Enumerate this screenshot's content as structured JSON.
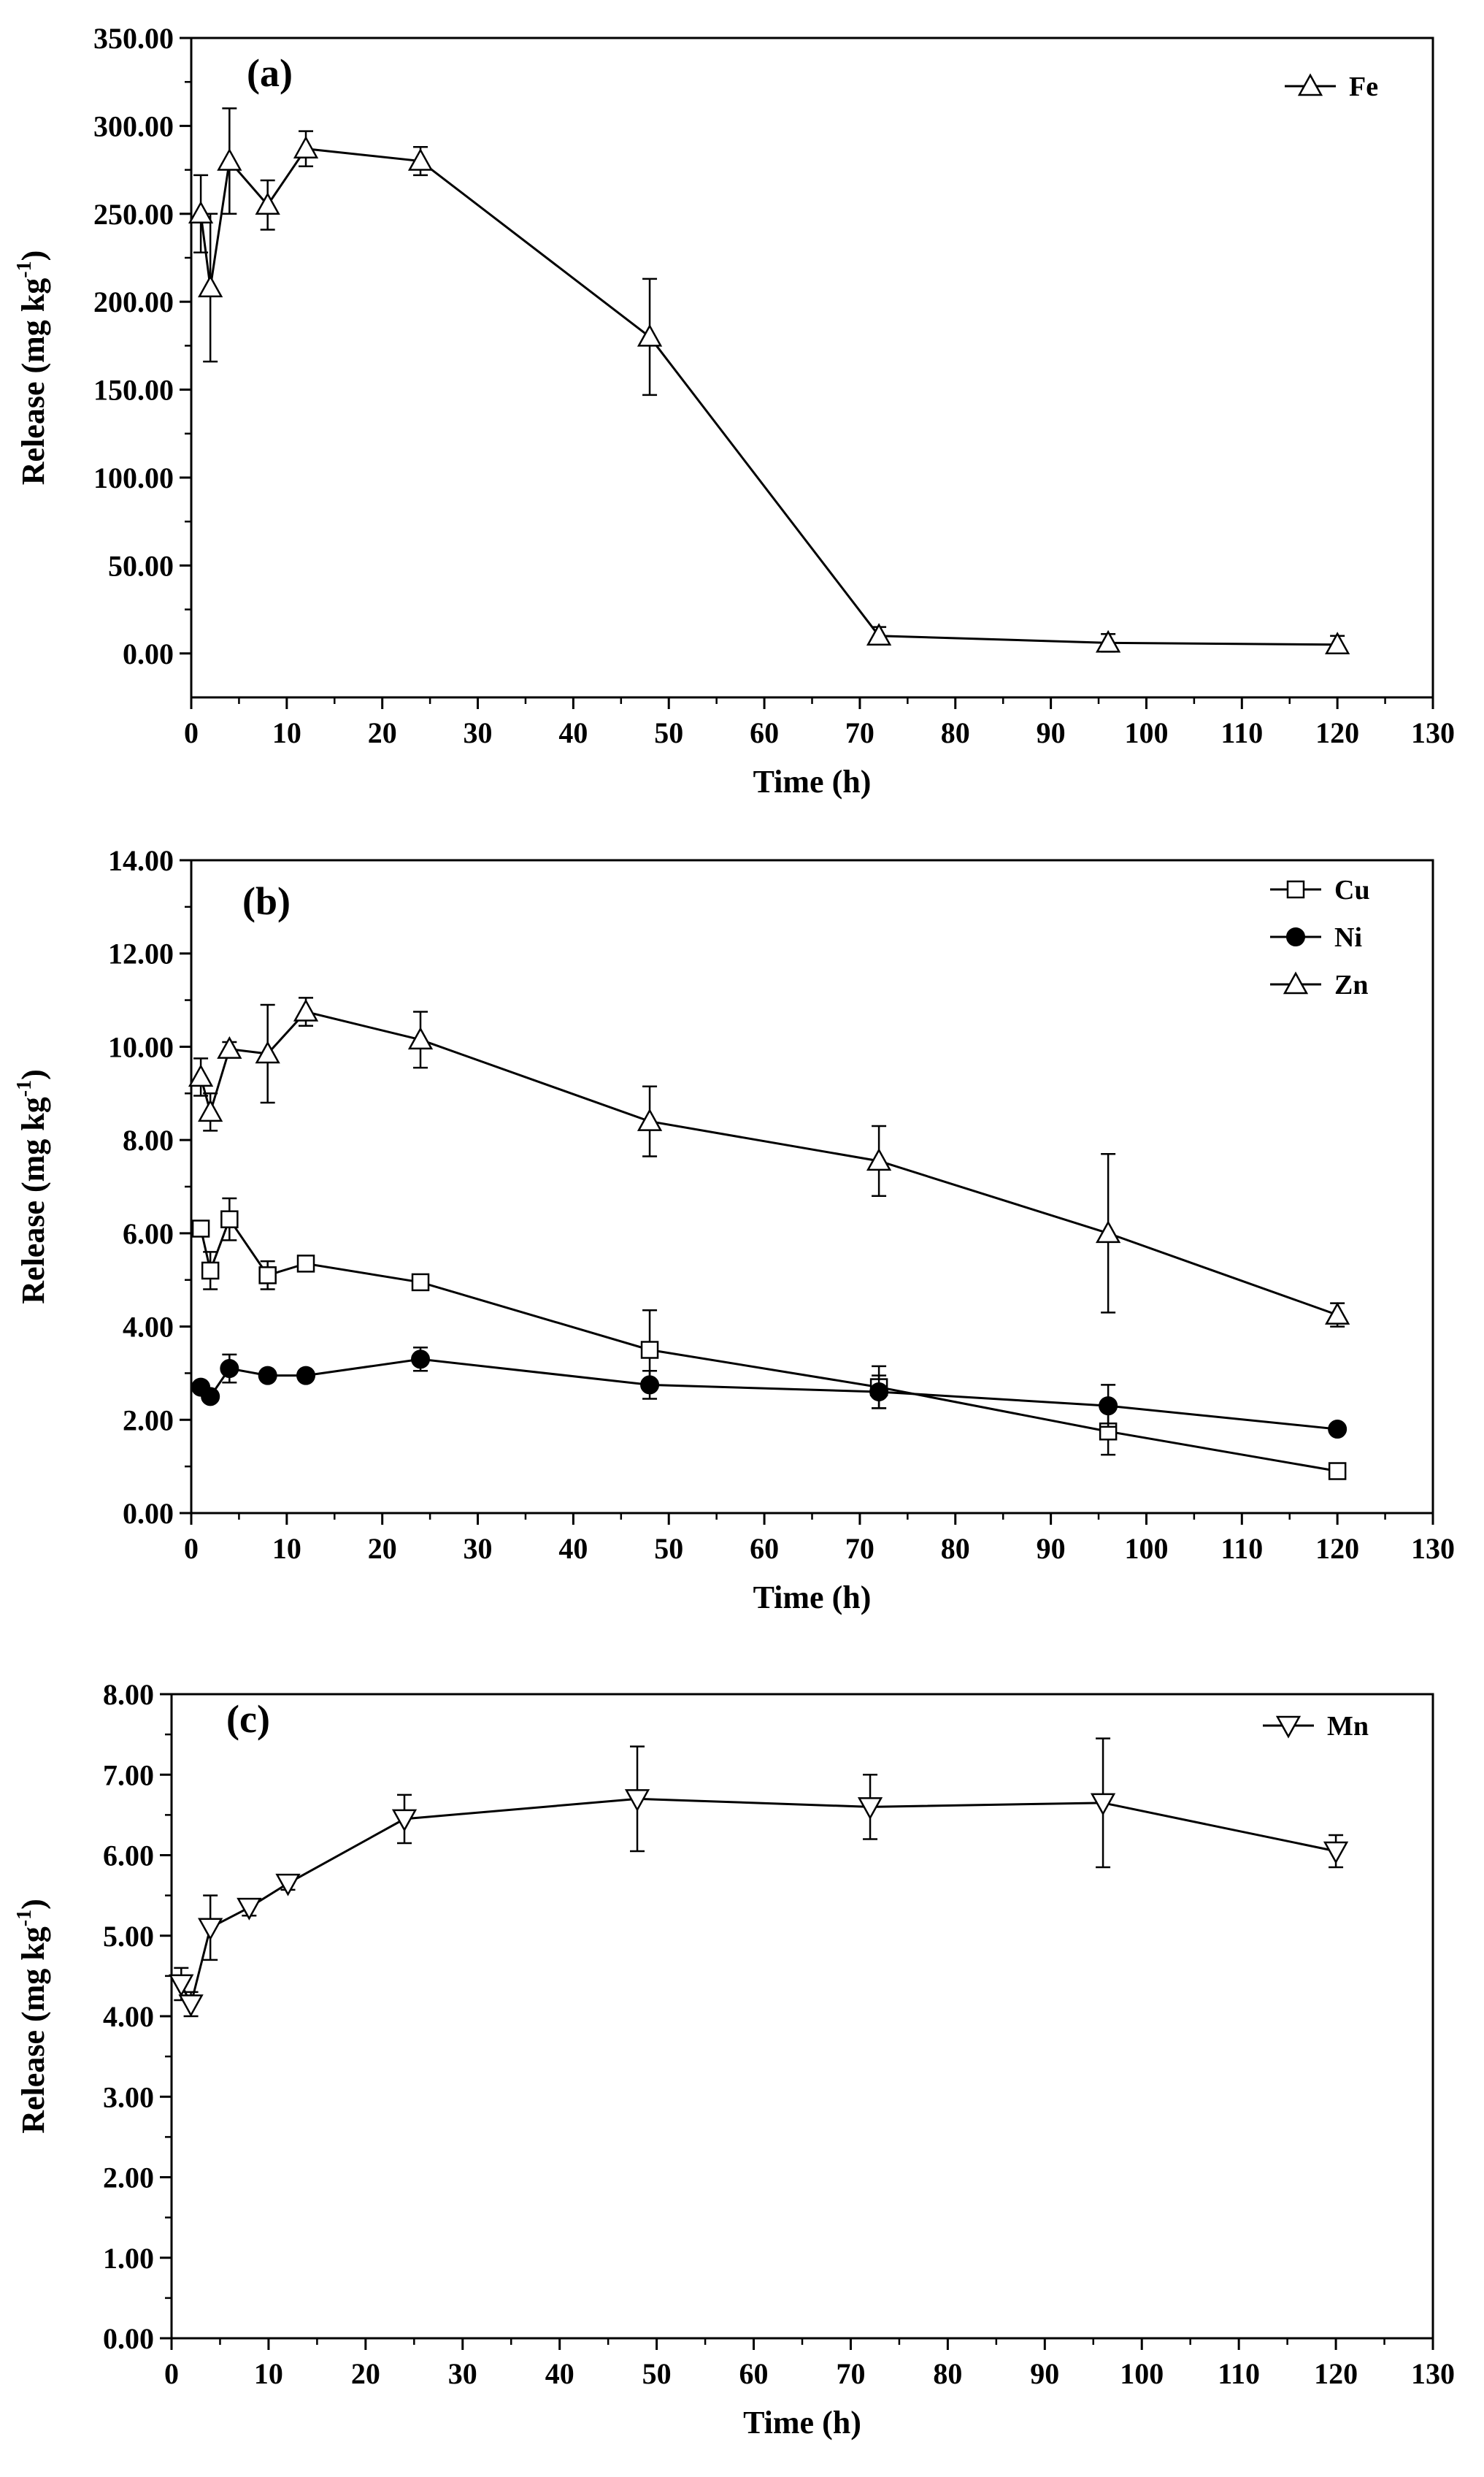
{
  "chart_data": [
    {
      "type": "line",
      "panel_label": "(a)",
      "xlabel": "Time (h)",
      "ylabel": "Release (mg kg",
      "ylabel_sup": "-1",
      "ylabel_close": ")",
      "xlim": [
        0,
        130
      ],
      "ylim": [
        -25,
        350
      ],
      "x_ticks": [
        0,
        10,
        20,
        30,
        40,
        50,
        60,
        70,
        80,
        90,
        100,
        110,
        120,
        130
      ],
      "x_tick_labels": [
        "0",
        "10",
        "20",
        "30",
        "40",
        "50",
        "60",
        "70",
        "80",
        "90",
        "100",
        "110",
        "120",
        "130"
      ],
      "y_ticks": [
        0,
        50,
        100,
        150,
        200,
        250,
        300,
        350
      ],
      "y_tick_labels": [
        "0.00",
        "50.00",
        "100.00",
        "150.00",
        "200.00",
        "250.00",
        "300.00",
        "350.00"
      ],
      "legend_position": "top-right",
      "series": [
        {
          "name": "Fe",
          "marker": "triangle-up-open",
          "x": [
            1,
            2,
            4,
            8,
            12,
            24,
            48,
            72,
            96,
            120
          ],
          "values": [
            250,
            208,
            280,
            255,
            287,
            280,
            180,
            10,
            6,
            5
          ],
          "errors": [
            22,
            42,
            30,
            14,
            10,
            8,
            33,
            5,
            5,
            5
          ]
        }
      ]
    },
    {
      "type": "line",
      "panel_label": "(b)",
      "xlabel": "Time (h)",
      "ylabel": "Release (mg kg",
      "ylabel_sup": "-1",
      "ylabel_close": ")",
      "xlim": [
        0,
        130
      ],
      "ylim": [
        0,
        14
      ],
      "x_ticks": [
        0,
        10,
        20,
        30,
        40,
        50,
        60,
        70,
        80,
        90,
        100,
        110,
        120,
        130
      ],
      "x_tick_labels": [
        "0",
        "10",
        "20",
        "30",
        "40",
        "50",
        "60",
        "70",
        "80",
        "90",
        "100",
        "110",
        "120",
        "130"
      ],
      "y_ticks": [
        0,
        2,
        4,
        6,
        8,
        10,
        12,
        14
      ],
      "y_tick_labels": [
        "0.00",
        "2.00",
        "4.00",
        "6.00",
        "8.00",
        "10.00",
        "12.00",
        "14.00"
      ],
      "legend_position": "top-right",
      "series": [
        {
          "name": "Cu",
          "marker": "square-open",
          "x": [
            1,
            2,
            4,
            8,
            12,
            24,
            48,
            72,
            96,
            120
          ],
          "values": [
            6.1,
            5.2,
            6.3,
            5.1,
            5.35,
            4.95,
            3.5,
            2.7,
            1.75,
            0.9
          ],
          "errors": [
            0.1,
            0.4,
            0.45,
            0.3,
            0.15,
            0.1,
            0.85,
            0.45,
            0.5,
            0.1
          ]
        },
        {
          "name": "Ni",
          "marker": "circle-filled",
          "x": [
            1,
            2,
            4,
            8,
            12,
            24,
            48,
            72,
            96,
            120
          ],
          "values": [
            2.7,
            2.5,
            3.1,
            2.95,
            2.95,
            3.3,
            2.75,
            2.6,
            2.3,
            1.8
          ],
          "errors": [
            0.1,
            0.1,
            0.3,
            0.1,
            0.1,
            0.25,
            0.3,
            0.35,
            0.45,
            0.1
          ]
        },
        {
          "name": "Zn",
          "marker": "triangle-up-open",
          "x": [
            1,
            2,
            4,
            8,
            12,
            24,
            48,
            72,
            96,
            120
          ],
          "values": [
            9.35,
            8.6,
            9.95,
            9.85,
            10.75,
            10.15,
            8.4,
            7.55,
            6.0,
            4.25
          ],
          "errors": [
            0.4,
            0.4,
            0.15,
            1.05,
            0.3,
            0.6,
            0.75,
            0.75,
            1.7,
            0.25
          ]
        }
      ]
    },
    {
      "type": "line",
      "panel_label": "(c)",
      "xlabel": "Time (h)",
      "ylabel": "Release (mg kg",
      "ylabel_sup": "-1",
      "ylabel_close": ")",
      "xlim": [
        0,
        130
      ],
      "ylim": [
        0,
        8
      ],
      "x_ticks": [
        0,
        10,
        20,
        30,
        40,
        50,
        60,
        70,
        80,
        90,
        100,
        110,
        120,
        130
      ],
      "x_tick_labels": [
        "0",
        "10",
        "20",
        "30",
        "40",
        "50",
        "60",
        "70",
        "80",
        "90",
        "100",
        "110",
        "120",
        "130"
      ],
      "y_ticks": [
        0,
        1,
        2,
        3,
        4,
        5,
        6,
        7,
        8
      ],
      "y_tick_labels": [
        "0.00",
        "1.00",
        "2.00",
        "3.00",
        "4.00",
        "5.00",
        "6.00",
        "7.00",
        "8.00"
      ],
      "legend_position": "top-right",
      "series": [
        {
          "name": "Mn",
          "marker": "triangle-down-open",
          "x": [
            1,
            2,
            4,
            8,
            12,
            24,
            48,
            72,
            96,
            120
          ],
          "values": [
            4.4,
            4.15,
            5.1,
            5.35,
            5.65,
            6.45,
            6.7,
            6.6,
            6.65,
            6.05
          ],
          "errors": [
            0.2,
            0.15,
            0.4,
            0.1,
            0.08,
            0.3,
            0.65,
            0.4,
            0.8,
            0.2
          ]
        }
      ]
    }
  ]
}
